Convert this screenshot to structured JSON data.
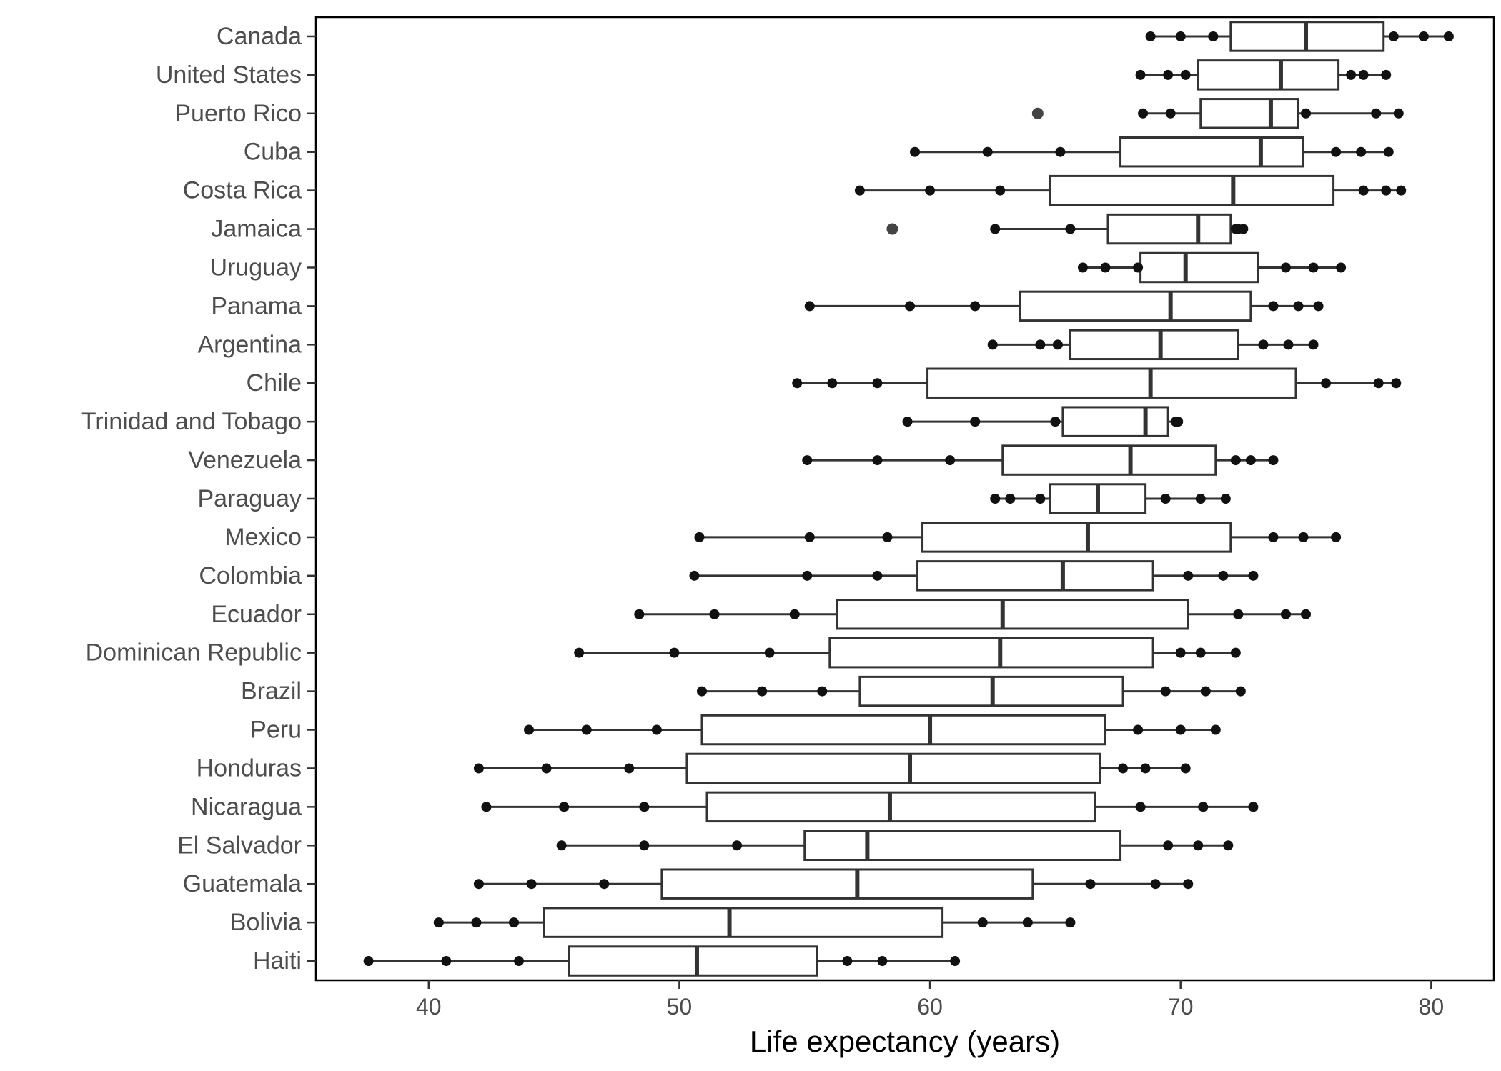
{
  "chart_data": {
    "type": "boxplot",
    "orientation": "horizontal",
    "xlabel": "Life expectancy (years)",
    "ylabel": "",
    "xlim": [
      35.5,
      82.5
    ],
    "xticks": [
      40,
      50,
      60,
      70,
      80
    ],
    "grid": false,
    "legend": "none",
    "colors": {
      "box_stroke": "#333333",
      "box_fill": "#ffffff",
      "point": "#111111",
      "axis": "#000000"
    },
    "categories": [
      "Canada",
      "United States",
      "Puerto Rico",
      "Cuba",
      "Costa Rica",
      "Jamaica",
      "Uruguay",
      "Panama",
      "Argentina",
      "Chile",
      "Trinidad and Tobago",
      "Venezuela",
      "Paraguay",
      "Mexico",
      "Colombia",
      "Ecuador",
      "Dominican Republic",
      "Brazil",
      "Peru",
      "Honduras",
      "Nicaragua",
      "El Salvador",
      "Guatemala",
      "Bolivia",
      "Haiti"
    ],
    "boxes": [
      {
        "name": "Canada",
        "whisker_low": 68.8,
        "q1": 72.0,
        "median": 75.0,
        "q3": 78.1,
        "whisker_high": 80.7,
        "points": [
          68.8,
          70.0,
          71.3,
          78.5,
          79.7,
          80.7
        ]
      },
      {
        "name": "United States",
        "whisker_low": 68.4,
        "q1": 70.7,
        "median": 74.0,
        "q3": 76.3,
        "whisker_high": 78.2,
        "points": [
          68.4,
          69.5,
          70.2,
          76.8,
          77.3,
          78.2
        ]
      },
      {
        "name": "Puerto Rico",
        "whisker_low": 68.5,
        "q1": 70.8,
        "median": 73.6,
        "q3": 74.7,
        "whisker_high": 78.7,
        "outliers": [
          64.3
        ],
        "points": [
          68.5,
          69.6,
          75.0,
          77.8,
          78.7
        ]
      },
      {
        "name": "Cuba",
        "whisker_low": 59.4,
        "q1": 67.6,
        "median": 73.2,
        "q3": 74.9,
        "whisker_high": 78.3,
        "points": [
          59.4,
          62.3,
          65.2,
          76.2,
          77.2,
          78.3
        ]
      },
      {
        "name": "Costa Rica",
        "whisker_low": 57.2,
        "q1": 64.8,
        "median": 72.1,
        "q3": 76.1,
        "whisker_high": 78.8,
        "points": [
          57.2,
          60.0,
          62.8,
          77.3,
          78.2,
          78.8
        ]
      },
      {
        "name": "Jamaica",
        "whisker_low": 62.6,
        "q1": 67.1,
        "median": 70.7,
        "q3": 72.0,
        "whisker_high": 72.5,
        "outliers": [
          58.5
        ],
        "points": [
          62.6,
          65.6,
          72.2,
          72.3,
          72.5
        ]
      },
      {
        "name": "Uruguay",
        "whisker_low": 66.1,
        "q1": 68.4,
        "median": 70.2,
        "q3": 73.1,
        "whisker_high": 76.4,
        "points": [
          66.1,
          67.0,
          68.3,
          74.2,
          75.3,
          76.4
        ]
      },
      {
        "name": "Panama",
        "whisker_low": 55.2,
        "q1": 63.6,
        "median": 69.6,
        "q3": 72.8,
        "whisker_high": 75.5,
        "points": [
          55.2,
          59.2,
          61.8,
          73.7,
          74.7,
          75.5
        ]
      },
      {
        "name": "Argentina",
        "whisker_low": 62.5,
        "q1": 65.6,
        "median": 69.2,
        "q3": 72.3,
        "whisker_high": 75.3,
        "points": [
          62.5,
          64.4,
          65.1,
          73.3,
          74.3,
          75.3
        ]
      },
      {
        "name": "Chile",
        "whisker_low": 54.7,
        "q1": 59.9,
        "median": 68.8,
        "q3": 74.6,
        "whisker_high": 78.6,
        "points": [
          54.7,
          56.1,
          57.9,
          75.8,
          77.9,
          78.6
        ]
      },
      {
        "name": "Trinidad and Tobago",
        "whisker_low": 59.1,
        "q1": 65.3,
        "median": 68.6,
        "q3": 69.5,
        "whisker_high": 69.9,
        "points": [
          59.1,
          61.8,
          65.0,
          69.8,
          69.9
        ]
      },
      {
        "name": "Venezuela",
        "whisker_low": 55.1,
        "q1": 62.9,
        "median": 68.0,
        "q3": 71.4,
        "whisker_high": 73.7,
        "points": [
          55.1,
          57.9,
          60.8,
          72.2,
          72.8,
          73.7
        ]
      },
      {
        "name": "Paraguay",
        "whisker_low": 62.6,
        "q1": 64.8,
        "median": 66.7,
        "q3": 68.6,
        "whisker_high": 71.8,
        "points": [
          62.6,
          63.2,
          64.4,
          69.4,
          70.8,
          71.8
        ]
      },
      {
        "name": "Mexico",
        "whisker_low": 50.8,
        "q1": 59.7,
        "median": 66.3,
        "q3": 72.0,
        "whisker_high": 76.2,
        "points": [
          50.8,
          55.2,
          58.3,
          73.7,
          74.9,
          76.2
        ]
      },
      {
        "name": "Colombia",
        "whisker_low": 50.6,
        "q1": 59.5,
        "median": 65.3,
        "q3": 68.9,
        "whisker_high": 72.9,
        "points": [
          50.6,
          55.1,
          57.9,
          70.3,
          71.7,
          72.9
        ]
      },
      {
        "name": "Ecuador",
        "whisker_low": 48.4,
        "q1": 56.3,
        "median": 62.9,
        "q3": 70.3,
        "whisker_high": 75.0,
        "points": [
          48.4,
          51.4,
          54.6,
          72.3,
          74.2,
          75.0
        ]
      },
      {
        "name": "Dominican Republic",
        "whisker_low": 46.0,
        "q1": 56.0,
        "median": 62.8,
        "q3": 68.9,
        "whisker_high": 72.2,
        "points": [
          46.0,
          49.8,
          53.6,
          70.0,
          70.8,
          72.2
        ]
      },
      {
        "name": "Brazil",
        "whisker_low": 50.9,
        "q1": 57.2,
        "median": 62.5,
        "q3": 67.7,
        "whisker_high": 72.4,
        "points": [
          50.9,
          53.3,
          55.7,
          69.4,
          71.0,
          72.4
        ]
      },
      {
        "name": "Peru",
        "whisker_low": 44.0,
        "q1": 50.9,
        "median": 60.0,
        "q3": 67.0,
        "whisker_high": 71.4,
        "points": [
          44.0,
          46.3,
          49.1,
          68.3,
          70.0,
          71.4
        ]
      },
      {
        "name": "Honduras",
        "whisker_low": 42.0,
        "q1": 50.3,
        "median": 59.2,
        "q3": 66.8,
        "whisker_high": 70.2,
        "points": [
          42.0,
          44.7,
          48.0,
          67.7,
          68.6,
          70.2
        ]
      },
      {
        "name": "Nicaragua",
        "whisker_low": 42.3,
        "q1": 51.1,
        "median": 58.4,
        "q3": 66.6,
        "whisker_high": 72.9,
        "points": [
          42.3,
          45.4,
          48.6,
          68.4,
          70.9,
          72.9
        ]
      },
      {
        "name": "El Salvador",
        "whisker_low": 45.3,
        "q1": 55.0,
        "median": 57.5,
        "q3": 67.6,
        "whisker_high": 71.9,
        "points": [
          45.3,
          48.6,
          52.3,
          69.5,
          70.7,
          71.9
        ]
      },
      {
        "name": "Guatemala",
        "whisker_low": 42.0,
        "q1": 49.3,
        "median": 57.1,
        "q3": 64.1,
        "whisker_high": 70.3,
        "points": [
          42.0,
          44.1,
          47.0,
          66.4,
          69.0,
          70.3
        ]
      },
      {
        "name": "Bolivia",
        "whisker_low": 40.4,
        "q1": 44.6,
        "median": 52.0,
        "q3": 60.5,
        "whisker_high": 65.6,
        "points": [
          40.4,
          41.9,
          43.4,
          62.1,
          63.9,
          65.6
        ]
      },
      {
        "name": "Haiti",
        "whisker_low": 37.6,
        "q1": 45.6,
        "median": 50.7,
        "q3": 55.5,
        "whisker_high": 61.0,
        "points": [
          37.6,
          40.7,
          43.6,
          56.7,
          58.1,
          61.0
        ]
      }
    ]
  }
}
